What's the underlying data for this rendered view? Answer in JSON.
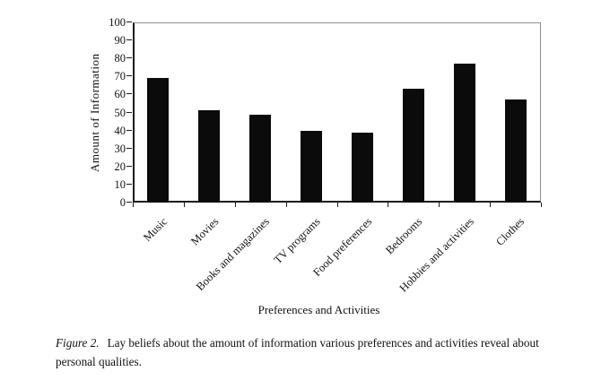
{
  "figure_caption": {
    "label": "Figure 2.",
    "text": "Lay beliefs about the amount of information various preferences and activities reveal about personal qualities."
  },
  "chart_data": {
    "type": "bar",
    "title": "",
    "categories": [
      "Music",
      "Movies",
      "Books and magazines",
      "TV programs",
      "Food preferences",
      "Bedrooms",
      "Hobbies and activities",
      "Clothes"
    ],
    "values": [
      69,
      51,
      49,
      40,
      39,
      63,
      77,
      57
    ],
    "xlabel": "Preferences and Activities",
    "ylabel": "Amount of Information",
    "ylim": [
      0,
      100
    ],
    "ytick_step": 10,
    "bar_color": "#0b0b0b",
    "grid": false,
    "legend": "none"
  }
}
